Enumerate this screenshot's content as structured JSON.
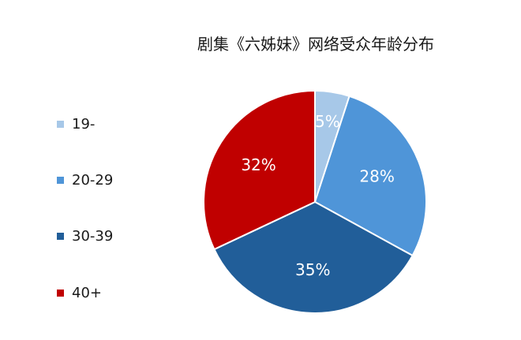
{
  "chart_data": {
    "type": "pie",
    "title": "剧集《六姊妹》网络受众年龄分布",
    "categories": [
      "19-",
      "20-29",
      "30-39",
      "40+"
    ],
    "values": [
      5,
      28,
      35,
      32
    ],
    "labels": [
      "5%",
      "28%",
      "35%",
      "32%"
    ],
    "colors": [
      "#a7c8e8",
      "#4f95d8",
      "#215e99",
      "#c00000"
    ],
    "start_angle_deg": 0,
    "direction": "clockwise",
    "legend_position": "left"
  }
}
